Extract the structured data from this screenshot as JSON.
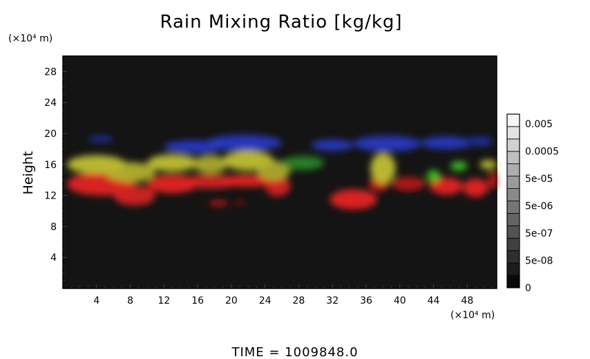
{
  "chart_data": {
    "type": "heatmap",
    "title": "Rain Mixing Ratio [kg/kg]",
    "xlabel": "",
    "ylabel": "Height",
    "x_unit": "(×10⁴ m)",
    "y_unit": "(×10⁴ m)",
    "xlim": [
      0,
      51.5
    ],
    "ylim": [
      0,
      30
    ],
    "x_ticks": [
      "4",
      "8",
      "12",
      "16",
      "20",
      "24",
      "28",
      "32",
      "36",
      "40",
      "44",
      "48"
    ],
    "y_ticks": [
      "4",
      "8",
      "12",
      "16",
      "20",
      "24",
      "28"
    ],
    "grid": false,
    "background_color": "#141414",
    "colorbar": {
      "labels": [
        "0.005",
        "0.0005",
        "5e-05",
        "5e-06",
        "5e-07",
        "5e-08",
        "0"
      ],
      "steps": 14
    },
    "footer": "TIME = 1009848.0",
    "regions": [
      {
        "color": "#ee2222",
        "x": 4.5,
        "y": 13.5,
        "rx": 4.0,
        "ry": 1.5
      },
      {
        "color": "#dd2222",
        "x": 8.5,
        "y": 12.0,
        "rx": 2.5,
        "ry": 1.3
      },
      {
        "color": "#ee2222",
        "x": 13.0,
        "y": 13.5,
        "rx": 3.0,
        "ry": 1.2
      },
      {
        "color": "#dd2222",
        "x": 17.5,
        "y": 13.8,
        "rx": 3.5,
        "ry": 0.9
      },
      {
        "color": "#ee2222",
        "x": 22.0,
        "y": 13.9,
        "rx": 3.0,
        "ry": 0.8
      },
      {
        "color": "#dd2222",
        "x": 25.5,
        "y": 13.2,
        "rx": 1.5,
        "ry": 1.3
      },
      {
        "color": "#cc1a1a",
        "x": 18.5,
        "y": 11.0,
        "rx": 1.2,
        "ry": 0.35
      },
      {
        "color": "#cc1a1a",
        "x": 21.0,
        "y": 11.1,
        "rx": 0.4,
        "ry": 0.3
      },
      {
        "color": "#ee2222",
        "x": 34.5,
        "y": 11.5,
        "rx": 2.8,
        "ry": 1.3
      },
      {
        "color": "#cc1a1a",
        "x": 37.5,
        "y": 13.5,
        "rx": 1.2,
        "ry": 1.0
      },
      {
        "color": "#bb1a1a",
        "x": 41.0,
        "y": 13.5,
        "rx": 2.0,
        "ry": 0.9
      },
      {
        "color": "#ee2222",
        "x": 45.5,
        "y": 13.2,
        "rx": 2.0,
        "ry": 1.1
      },
      {
        "color": "#ee2222",
        "x": 49.0,
        "y": 13.0,
        "rx": 1.5,
        "ry": 1.2
      },
      {
        "color": "#cc1a1a",
        "x": 51.0,
        "y": 14.0,
        "rx": 0.5,
        "ry": 1.2
      },
      {
        "color": "#c8c833",
        "x": 4.0,
        "y": 16.0,
        "rx": 3.5,
        "ry": 1.2
      },
      {
        "color": "#b8b830",
        "x": 8.0,
        "y": 15.0,
        "rx": 3.0,
        "ry": 1.3
      },
      {
        "color": "#c8c833",
        "x": 13.0,
        "y": 16.2,
        "rx": 3.0,
        "ry": 1.1
      },
      {
        "color": "#b0b030",
        "x": 17.5,
        "y": 16.0,
        "rx": 2.0,
        "ry": 1.2
      },
      {
        "color": "#c8c833",
        "x": 22.0,
        "y": 16.5,
        "rx": 3.0,
        "ry": 1.3
      },
      {
        "color": "#b0b030",
        "x": 25.0,
        "y": 15.2,
        "rx": 2.0,
        "ry": 1.3
      },
      {
        "color": "#2a8a2a",
        "x": 28.5,
        "y": 16.2,
        "rx": 2.5,
        "ry": 0.9
      },
      {
        "color": "#c8c833",
        "x": 38.0,
        "y": 15.5,
        "rx": 1.5,
        "ry": 2.0
      },
      {
        "color": "#44cc22",
        "x": 44.0,
        "y": 14.5,
        "rx": 0.8,
        "ry": 0.8
      },
      {
        "color": "#44cc22",
        "x": 47.0,
        "y": 15.8,
        "rx": 1.0,
        "ry": 0.6
      },
      {
        "color": "#c8c833",
        "x": 50.5,
        "y": 16.0,
        "rx": 1.0,
        "ry": 0.6
      },
      {
        "color": "#2a3acc",
        "x": 15.5,
        "y": 18.3,
        "rx": 3.5,
        "ry": 0.8
      },
      {
        "color": "#2a3acc",
        "x": 21.5,
        "y": 18.8,
        "rx": 4.5,
        "ry": 1.0
      },
      {
        "color": "#2a3acc",
        "x": 32.0,
        "y": 18.5,
        "rx": 2.5,
        "ry": 0.7
      },
      {
        "color": "#2a3acc",
        "x": 38.5,
        "y": 18.7,
        "rx": 4.0,
        "ry": 1.0
      },
      {
        "color": "#2a3acc",
        "x": 45.5,
        "y": 18.8,
        "rx": 3.0,
        "ry": 0.8
      },
      {
        "color": "#2030aa",
        "x": 4.5,
        "y": 19.3,
        "rx": 1.5,
        "ry": 0.4
      },
      {
        "color": "#2030aa",
        "x": 49.5,
        "y": 19.0,
        "rx": 1.5,
        "ry": 0.6
      }
    ]
  }
}
